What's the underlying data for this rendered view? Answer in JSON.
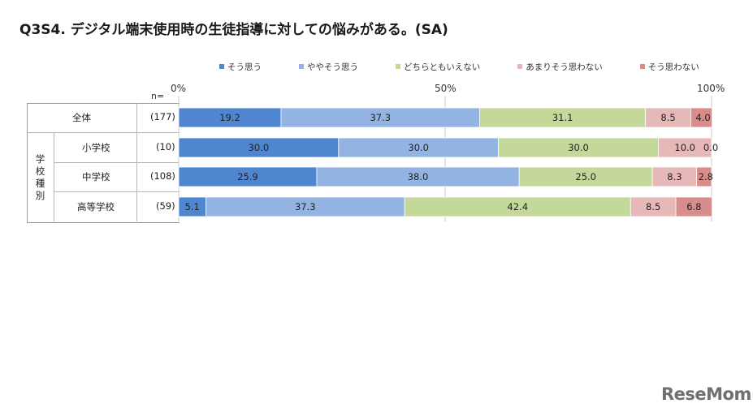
{
  "title": "Q3S4. デジタル端末使用時の生徒指導に対しての悩みがある。(SA)",
  "n_label": "n=",
  "group_label_chars": [
    "学",
    "校",
    "種",
    "別"
  ],
  "logo_text": "ReseMom",
  "chart_data": {
    "type": "bar",
    "orientation": "horizontal",
    "stacked": "percent",
    "title": "Q3S4. デジタル端末使用時の生徒指導に対しての悩みがある。(SA)",
    "xlim": [
      0,
      100
    ],
    "x_ticks": [
      "0%",
      "50%",
      "100%"
    ],
    "legend_position": "top",
    "categories": [
      "全体",
      "小学校",
      "中学校",
      "高等学校"
    ],
    "n_values": [
      "(177)",
      "(10)",
      "(108)",
      "(59)"
    ],
    "series": [
      {
        "name": "そう思う",
        "color": "#4f86cf",
        "values": [
          19.2,
          30.0,
          25.9,
          5.1
        ]
      },
      {
        "name": "ややそう思う",
        "color": "#93b4e3",
        "values": [
          37.3,
          30.0,
          38.0,
          37.3
        ]
      },
      {
        "name": "どちらともいえない",
        "color": "#c4d89a",
        "values": [
          31.1,
          30.0,
          25.0,
          42.4
        ]
      },
      {
        "name": "あまりそう思わない",
        "color": "#e6b8b8",
        "values": [
          8.5,
          10.0,
          8.3,
          8.5
        ]
      },
      {
        "name": "そう思わない",
        "color": "#d98c8c",
        "values": [
          4.0,
          0.0,
          2.8,
          6.8
        ]
      }
    ]
  }
}
